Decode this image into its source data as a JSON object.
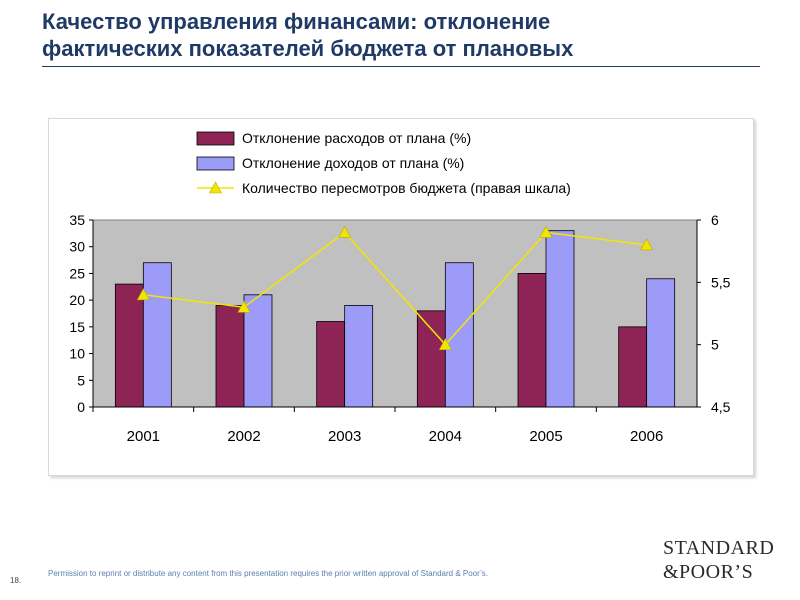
{
  "slide": {
    "title_line1": "Качество управления финансами: отклонение",
    "title_line2": "фактических показателей бюджета от плановых",
    "page_number": "18.",
    "footer_note": "Permission to reprint or distribute any content from this presentation requires the prior written approval of Standard & Poor’s.",
    "logo_line1": "STANDARD",
    "logo_line2": "&POOR’S"
  },
  "colors": {
    "title": "#1f3a66",
    "plot_bg": "#c0c0c0",
    "expenses": "#8e2456",
    "revenues": "#9c9cf8",
    "revisions": "#f2e600"
  },
  "chart_data": {
    "type": "bar",
    "categories": [
      "2001",
      "2002",
      "2003",
      "2004",
      "2005",
      "2006"
    ],
    "series": [
      {
        "name": "Отклонение расходов от плана (%)",
        "type": "bar",
        "axis": "left",
        "values": [
          23,
          19,
          16,
          18,
          25,
          15
        ]
      },
      {
        "name": "Отклонение доходов от плана (%)",
        "type": "bar",
        "axis": "left",
        "values": [
          27,
          21,
          19,
          27,
          33,
          24
        ]
      },
      {
        "name": "Количество пересмотров бюджета (правая шкала)",
        "type": "line",
        "axis": "right",
        "values": [
          5.4,
          5.3,
          5.9,
          5.0,
          5.9,
          5.8
        ]
      }
    ],
    "y_left": {
      "min": 0,
      "max": 35,
      "ticks": [
        "0",
        "5",
        "10",
        "15",
        "20",
        "25",
        "30",
        "35"
      ]
    },
    "y_right": {
      "min": 4.5,
      "max": 6,
      "ticks": [
        "4,5",
        "5",
        "5,5",
        "6"
      ]
    },
    "legend_position": "top",
    "grid": false
  }
}
